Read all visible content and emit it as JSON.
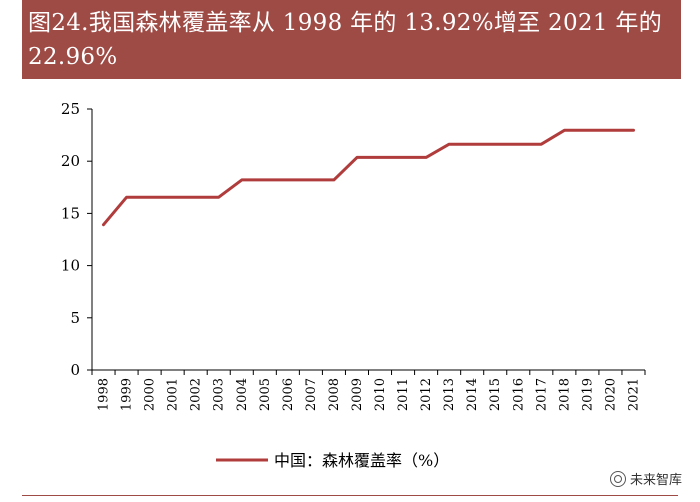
{
  "header": {
    "title": "图24.我国森林覆盖率从 1998 年的 13.92%增至 2021 年的 22.96%"
  },
  "watermark": {
    "text": "未来智库",
    "icon": "wechat-icon"
  },
  "colors": {
    "title_bg": "#9e4a45",
    "series_line": "#b03c3c"
  },
  "chart_data": {
    "type": "line",
    "title": "",
    "xlabel": "",
    "ylabel": "",
    "categories": [
      "1998",
      "1999",
      "2000",
      "2001",
      "2002",
      "2003",
      "2004",
      "2005",
      "2006",
      "2007",
      "2008",
      "2009",
      "2010",
      "2011",
      "2012",
      "2013",
      "2014",
      "2015",
      "2016",
      "2017",
      "2018",
      "2019",
      "2020",
      "2021"
    ],
    "series": [
      {
        "name": "中国：森林覆盖率（%）",
        "values": [
          13.92,
          16.55,
          16.55,
          16.55,
          16.55,
          16.55,
          18.21,
          18.21,
          18.21,
          18.21,
          18.21,
          20.36,
          20.36,
          20.36,
          20.36,
          21.63,
          21.63,
          21.63,
          21.63,
          21.63,
          22.96,
          22.96,
          22.96,
          22.96
        ]
      }
    ],
    "ylim": [
      0,
      25
    ],
    "yticks": [
      0,
      5,
      10,
      15,
      20,
      25
    ],
    "grid": false,
    "legend": "bottom"
  }
}
